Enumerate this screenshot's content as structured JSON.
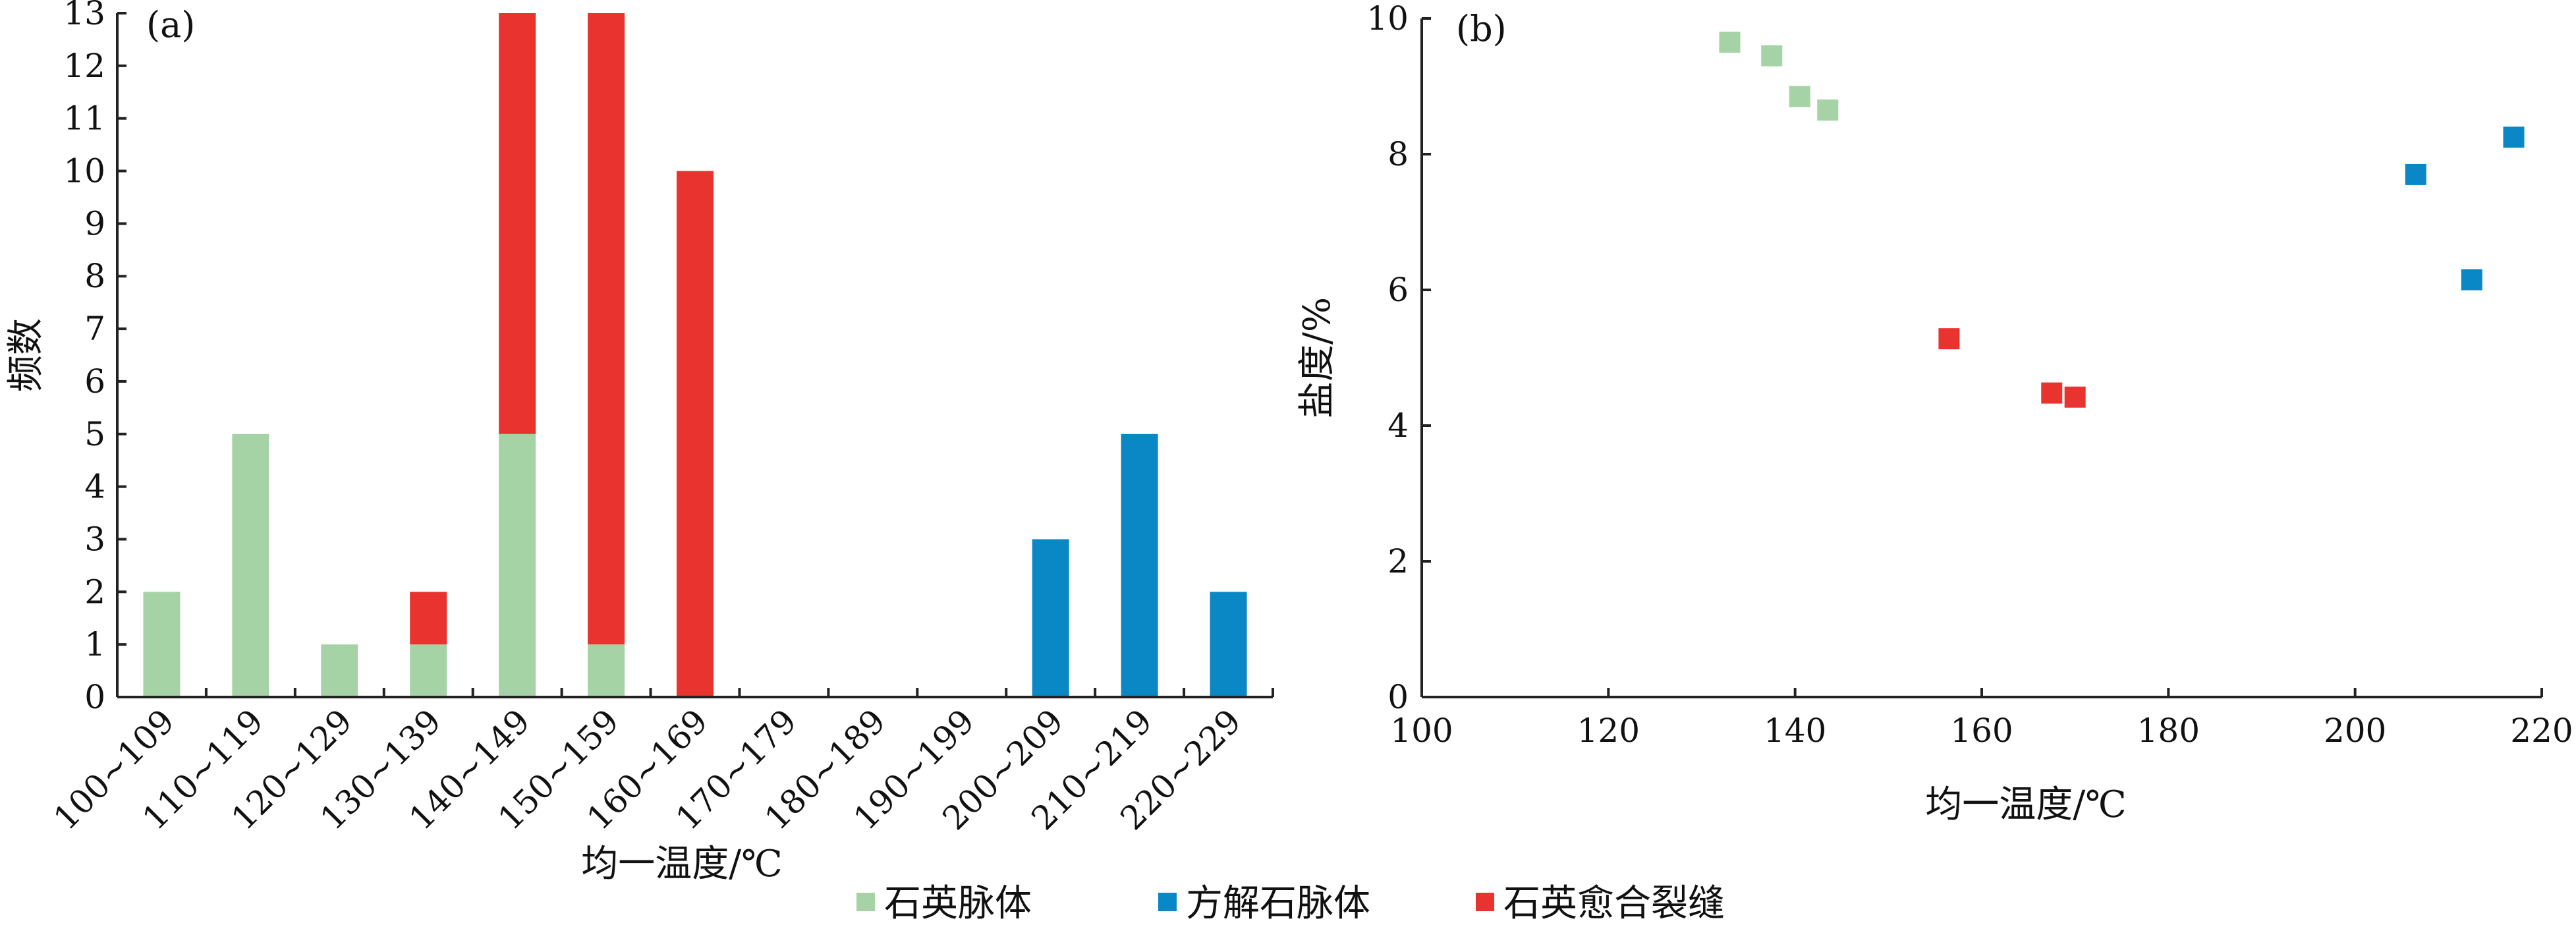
{
  "chart_data": [
    {
      "type": "bar",
      "stacked": true,
      "panel_label": "(a)",
      "xlabel": "均一温度/℃",
      "ylabel": "频数",
      "ylim": [
        0,
        13
      ],
      "yticks": [
        0,
        1,
        2,
        3,
        4,
        5,
        6,
        7,
        8,
        9,
        10,
        11,
        12,
        13
      ],
      "categories": [
        "100~109",
        "110~119",
        "120~129",
        "130~139",
        "140~149",
        "150~159",
        "160~169",
        "170~179",
        "180~189",
        "190~199",
        "200~209",
        "210~219",
        "220~229"
      ],
      "series": [
        {
          "name": "石英脉体",
          "color": "#a5d3a6",
          "values": [
            2,
            5,
            1,
            1,
            5,
            1,
            0,
            0,
            0,
            0,
            0,
            0,
            0
          ]
        },
        {
          "name": "方解石脉体",
          "color": "#0a88c6",
          "values": [
            0,
            0,
            0,
            0,
            0,
            0,
            0,
            0,
            0,
            0,
            3,
            5,
            2
          ]
        },
        {
          "name": "石英愈合裂缝",
          "color": "#e8332e",
          "values": [
            0,
            0,
            0,
            1,
            8,
            12,
            10,
            0,
            0,
            0,
            0,
            0,
            0
          ]
        }
      ],
      "grid": false
    },
    {
      "type": "scatter",
      "panel_label": "(b)",
      "xlabel": "均一温度/℃",
      "ylabel": "盐度/%",
      "xlim": [
        100,
        220
      ],
      "ylim": [
        0,
        10
      ],
      "xticks": [
        100,
        120,
        140,
        160,
        180,
        200,
        220
      ],
      "yticks": [
        0,
        2,
        4,
        6,
        8,
        10
      ],
      "series": [
        {
          "name": "石英脉体",
          "color": "#a5d3a6",
          "points": [
            [
              133,
              9.65
            ],
            [
              137.5,
              9.45
            ],
            [
              140.5,
              8.85
            ],
            [
              143.5,
              8.65
            ]
          ]
        },
        {
          "name": "方解石脉体",
          "color": "#0a88c6",
          "points": [
            [
              206.5,
              7.7
            ],
            [
              212.5,
              6.15
            ],
            [
              217,
              8.25
            ]
          ]
        },
        {
          "name": "石英愈合裂缝",
          "color": "#e8332e",
          "points": [
            [
              156.5,
              5.28
            ],
            [
              167.5,
              4.48
            ],
            [
              170,
              4.42
            ]
          ]
        }
      ],
      "grid": false
    }
  ],
  "legend": {
    "placement": "bottom-center",
    "items": [
      {
        "label": "石英脉体",
        "color": "#a5d3a6"
      },
      {
        "label": "方解石脉体",
        "color": "#0a88c6"
      },
      {
        "label": "石英愈合裂缝",
        "color": "#e8332e"
      }
    ]
  }
}
